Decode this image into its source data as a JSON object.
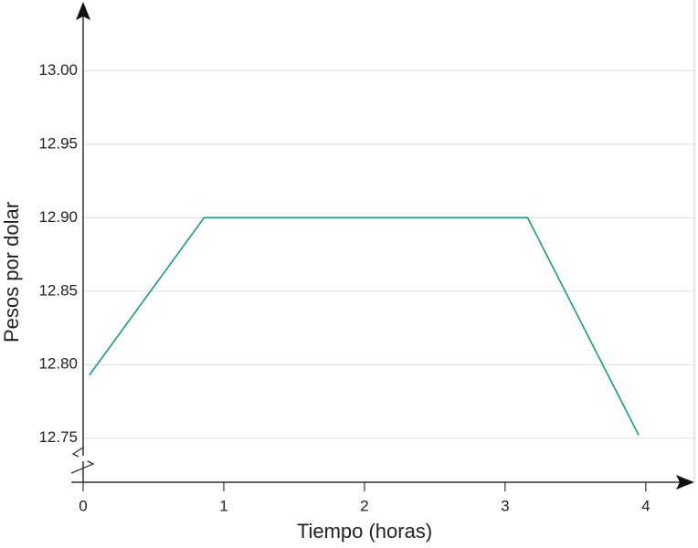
{
  "chart_data": {
    "type": "line",
    "x_label": "Tiempo (horas)",
    "y_label": "Pesos por dolar",
    "x": [
      0.045,
      0.86,
      3.16,
      3.95
    ],
    "series": [
      {
        "color": "#1a9a80",
        "values": [
          12.793,
          12.9,
          12.9,
          12.752
        ]
      }
    ],
    "xlim": [
      0,
      4.3
    ],
    "ylim": [
      12.72,
      13.045
    ],
    "xticks": [
      0,
      1,
      2,
      3,
      4
    ],
    "yticks": [
      {
        "value": 13.0,
        "label": "13.00"
      },
      12.95,
      {
        "value": 12.9,
        "label": "12.90"
      },
      12.85,
      {
        "value": 12.8,
        "label": "12.80"
      },
      12.75
    ],
    "grid": true
  }
}
